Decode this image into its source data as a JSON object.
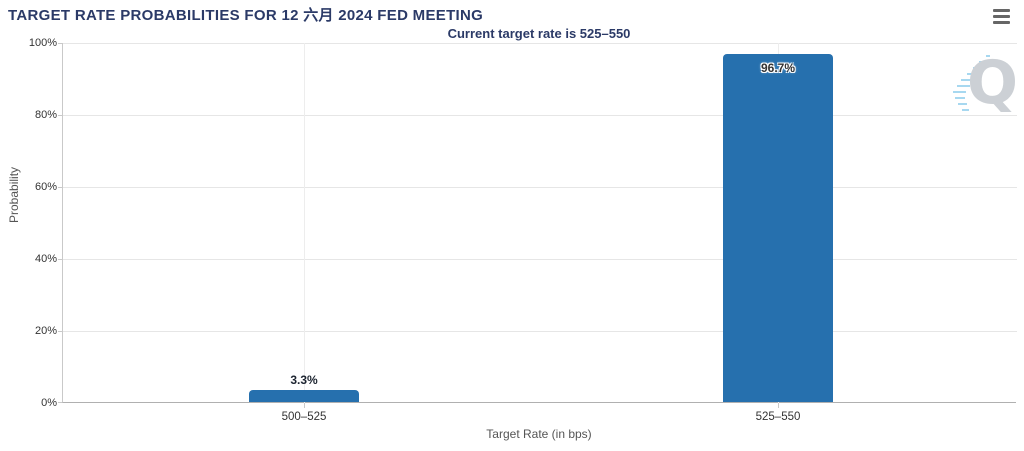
{
  "header": {
    "title": "TARGET RATE PROBABILITIES FOR 12 六月 2024 FED MEETING",
    "menu_icon": "hamburger-icon"
  },
  "chart_data": {
    "type": "bar",
    "title": "TARGET RATE PROBABILITIES FOR 12 六月 2024 FED MEETING",
    "subtitle": "Current target rate is 525–550",
    "categories": [
      "500–525",
      "525–550"
    ],
    "values": [
      3.3,
      96.7
    ],
    "value_labels": [
      "3.3%",
      "96.7%"
    ],
    "xlabel": "Target Rate (in bps)",
    "ylabel": "Probability",
    "ylim": [
      0,
      100
    ],
    "yticks": [
      "100%",
      "80%",
      "60%",
      "40%",
      "20%",
      "0%"
    ],
    "grid": "horizontal gridlines every 20%, vertical gridline at each category center",
    "legend": "none",
    "bar_color": "#2670ae"
  },
  "watermark": {
    "letter": "Q"
  },
  "colors": {
    "title_navy": "#2b3a67",
    "bar_blue": "#2670ae",
    "gridline": "#e6e6e6",
    "axis_line": "#b0b0b0",
    "tick_text": "#333333",
    "axis_title_text": "#555555",
    "watermark_gray": "#c7ccd1",
    "watermark_blue": "#9ed4ef"
  }
}
